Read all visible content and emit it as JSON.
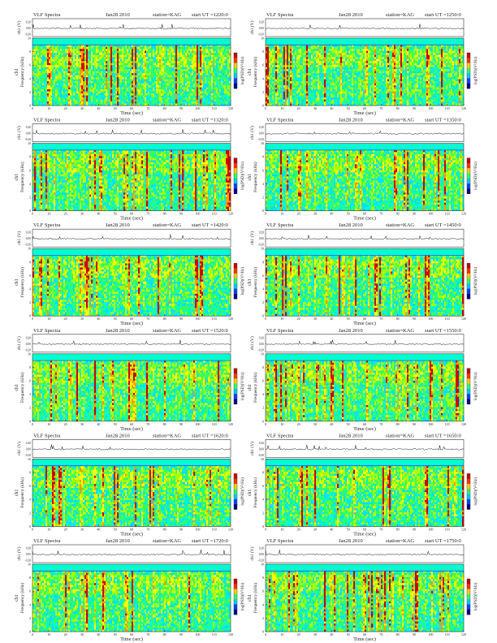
{
  "header": {
    "label": "VLF Spectra",
    "date": "Jan28 2010",
    "station": "station=KAG",
    "start_prefix": "start  UT ="
  },
  "axes": {
    "time_label": "Time (sec)",
    "freq_label": "Frequency (kHz)",
    "ch_label": "ch1",
    "wave_label": "ch1 (V)",
    "colorbar_label": "log(PSD)(V²/Hz)",
    "x_ticks": [
      "0",
      "10",
      "20",
      "30",
      "40",
      "50",
      "60",
      "70",
      "80",
      "90",
      "100",
      "110",
      "120"
    ],
    "freq_ticks": [
      "0",
      "2",
      "4",
      "6",
      "8",
      "10"
    ],
    "wave_ticks": [
      "0.20",
      "0.00",
      "-0.20"
    ]
  },
  "colors": {
    "background_fill": "#00ffd0",
    "bands": [
      "#00e0ff",
      "#33ff66",
      "#aaff00",
      "#ffff00",
      "#ff9900",
      "#cc0000"
    ]
  },
  "chart_data": [
    {
      "type": "heatmap",
      "start_ut": "1220:0",
      "xlim": [
        0,
        120
      ],
      "ylim": [
        0,
        10
      ],
      "ylabel": "Frequency (kHz)",
      "xlabel": "Time (sec)"
    },
    {
      "type": "heatmap",
      "start_ut": "1250:0",
      "xlim": [
        0,
        120
      ],
      "ylim": [
        0,
        10
      ],
      "ylabel": "Frequency (kHz)",
      "xlabel": "Time (sec)"
    },
    {
      "type": "heatmap",
      "start_ut": "1320:0",
      "xlim": [
        0,
        120
      ],
      "ylim": [
        0,
        10
      ],
      "ylabel": "Frequency (kHz)",
      "xlabel": "Time (sec)"
    },
    {
      "type": "heatmap",
      "start_ut": "1350:0",
      "xlim": [
        0,
        120
      ],
      "ylim": [
        0,
        10
      ],
      "ylabel": "Frequency (kHz)",
      "xlabel": "Time (sec)"
    },
    {
      "type": "heatmap",
      "start_ut": "1420:0",
      "xlim": [
        0,
        120
      ],
      "ylim": [
        0,
        10
      ],
      "ylabel": "Frequency (kHz)",
      "xlabel": "Time (sec)"
    },
    {
      "type": "heatmap",
      "start_ut": "1450:0",
      "xlim": [
        0,
        120
      ],
      "ylim": [
        0,
        10
      ],
      "ylabel": "Frequency (kHz)",
      "xlabel": "Time (sec)"
    },
    {
      "type": "heatmap",
      "start_ut": "1520:0",
      "xlim": [
        0,
        120
      ],
      "ylim": [
        0,
        10
      ],
      "ylabel": "Frequency (kHz)",
      "xlabel": "Time (sec)"
    },
    {
      "type": "heatmap",
      "start_ut": "1550:0",
      "xlim": [
        0,
        120
      ],
      "ylim": [
        0,
        10
      ],
      "ylabel": "Frequency (kHz)",
      "xlabel": "Time (sec)"
    },
    {
      "type": "heatmap",
      "start_ut": "1620:0",
      "xlim": [
        0,
        120
      ],
      "ylim": [
        0,
        10
      ],
      "ylabel": "Frequency (kHz)",
      "xlabel": "Time (sec)"
    },
    {
      "type": "heatmap",
      "start_ut": "1650:0",
      "xlim": [
        0,
        120
      ],
      "ylim": [
        0,
        10
      ],
      "ylabel": "Frequency (kHz)",
      "xlabel": "Time (sec)"
    },
    {
      "type": "heatmap",
      "start_ut": "1720:0",
      "xlim": [
        0,
        120
      ],
      "ylim": [
        0,
        10
      ],
      "ylabel": "Frequency (kHz)",
      "xlabel": "Time (sec)"
    },
    {
      "type": "heatmap",
      "start_ut": "1750:0",
      "xlim": [
        0,
        120
      ],
      "ylim": [
        0,
        10
      ],
      "ylabel": "Frequency (kHz)",
      "xlabel": "Time (sec)"
    }
  ]
}
